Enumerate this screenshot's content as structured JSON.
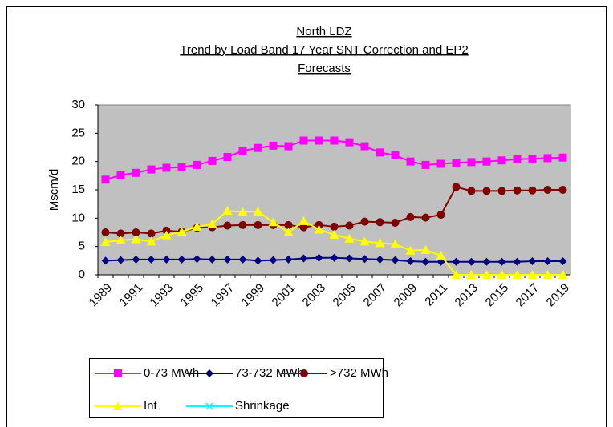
{
  "chart_data": {
    "type": "line",
    "title": [
      "North LDZ",
      "Trend by Load Band 17 Year SNT Correction and EP2",
      "Forecasts"
    ],
    "y_label": "Mscm/d",
    "categories": [
      "1989",
      null,
      "1991",
      null,
      "1993",
      null,
      "1995",
      null,
      "1997",
      null,
      "1999",
      null,
      "2001",
      null,
      "2003",
      null,
      "2005",
      null,
      "2007",
      null,
      "2009",
      null,
      "2011",
      null,
      "2013",
      null,
      "2015",
      null,
      "2017",
      null,
      "2019"
    ],
    "series": [
      {
        "name": "0-73 MWh",
        "color": "#ff00ff",
        "marker": "square",
        "values": [
          16.8,
          17.6,
          18.0,
          18.6,
          18.9,
          19.0,
          19.4,
          20.1,
          20.8,
          21.9,
          22.4,
          22.8,
          22.7,
          23.7,
          23.7,
          23.7,
          23.4,
          22.7,
          21.6,
          21.1,
          20.0,
          19.4,
          19.6,
          19.8,
          19.9,
          20.0,
          20.2,
          20.4,
          20.5,
          20.6,
          20.7
        ]
      },
      {
        "name": "73-732 MWh",
        "color": "#000080",
        "marker": "diamond",
        "values": [
          2.5,
          2.6,
          2.7,
          2.7,
          2.7,
          2.7,
          2.8,
          2.7,
          2.7,
          2.7,
          2.5,
          2.6,
          2.7,
          2.9,
          3.0,
          3.0,
          2.9,
          2.8,
          2.7,
          2.6,
          2.4,
          2.3,
          2.3,
          2.3,
          2.3,
          2.3,
          2.3,
          2.3,
          2.4,
          2.4,
          2.4
        ]
      },
      {
        "name": ">732 MWh",
        "color": "#800000",
        "marker": "circle",
        "values": [
          7.5,
          7.3,
          7.5,
          7.3,
          7.8,
          7.6,
          8.3,
          8.4,
          8.7,
          8.8,
          8.8,
          8.8,
          8.8,
          8.4,
          8.8,
          8.5,
          8.7,
          9.4,
          9.3,
          9.2,
          10.2,
          10.1,
          10.6,
          15.5,
          14.8,
          14.8,
          14.8,
          14.9,
          14.9,
          15.0,
          15.0
        ]
      },
      {
        "name": "Int",
        "color": "#ffff00",
        "marker": "triangle",
        "values": [
          5.8,
          6.1,
          6.3,
          5.9,
          7.0,
          7.6,
          8.5,
          9.0,
          11.3,
          11.1,
          11.2,
          9.3,
          7.5,
          9.5,
          8.0,
          7.1,
          6.4,
          5.9,
          5.6,
          5.4,
          4.3,
          4.4,
          3.4,
          0,
          0,
          0,
          0,
          0,
          0,
          0,
          0
        ]
      },
      {
        "name": "Shrinkage",
        "color": "#00ffff",
        "marker": "x",
        "values": [
          null,
          null,
          null,
          null,
          null,
          null,
          null,
          null,
          null,
          null,
          null,
          null,
          null,
          null,
          null,
          null,
          null,
          null,
          null,
          null,
          null,
          null,
          null,
          null,
          null,
          null,
          null,
          null,
          null,
          null,
          null
        ]
      }
    ],
    "ylim": [
      0,
      30
    ],
    "yticks": [
      0,
      5,
      10,
      15,
      20,
      25,
      30
    ],
    "plot_background": "#c0c0c0",
    "legend": "bottom"
  }
}
